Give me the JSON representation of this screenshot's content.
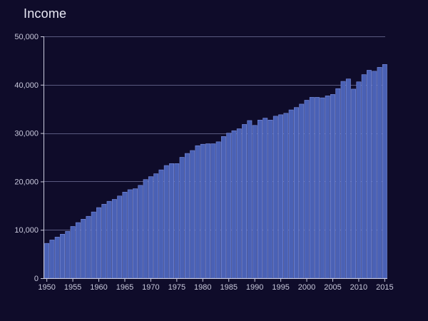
{
  "chart_data": {
    "type": "bar",
    "title": "Income",
    "xlabel": "",
    "ylabel": "",
    "x_tick_labels": [
      "1950",
      "1955",
      "1960",
      "1965",
      "1970",
      "1975",
      "1980",
      "1985",
      "1990",
      "1995",
      "2000",
      "2005",
      "2010",
      "2015"
    ],
    "y_tick_labels": [
      "0",
      "10,000",
      "20,000",
      "30,000",
      "40,000",
      "50,000"
    ],
    "y_ticks": [
      0,
      10000,
      20000,
      30000,
      40000,
      50000
    ],
    "ylim": [
      0,
      50000
    ],
    "grid": true,
    "bar_color": "#4a61b5",
    "bar_edge_color": "#7b8fe0",
    "grid_color": "#5a5a80",
    "background_color": "#0f0c2a",
    "categories": [
      1950,
      1951,
      1952,
      1953,
      1954,
      1955,
      1956,
      1957,
      1958,
      1959,
      1960,
      1961,
      1962,
      1963,
      1964,
      1965,
      1966,
      1967,
      1968,
      1969,
      1970,
      1971,
      1972,
      1973,
      1974,
      1975,
      1976,
      1977,
      1978,
      1979,
      1980,
      1981,
      1982,
      1983,
      1984,
      1985,
      1986,
      1987,
      1988,
      1989,
      1990,
      1991,
      1992,
      1993,
      1994,
      1995,
      1996,
      1997,
      1998,
      1999,
      2000,
      2001,
      2002,
      2003,
      2004,
      2005,
      2006,
      2007,
      2008,
      2009,
      2010,
      2011,
      2012,
      2013,
      2014,
      2015
    ],
    "values": [
      7200,
      7900,
      8500,
      9100,
      9700,
      10700,
      11500,
      12200,
      12800,
      13700,
      14600,
      15300,
      15900,
      16300,
      17000,
      17800,
      18300,
      18500,
      19200,
      20400,
      21000,
      21600,
      22400,
      23300,
      23700,
      23700,
      25000,
      25800,
      26400,
      27400,
      27700,
      27800,
      27800,
      28200,
      29300,
      30000,
      30500,
      30900,
      31800,
      32600,
      31600,
      32700,
      33100,
      32700,
      33500,
      33800,
      34100,
      34800,
      35300,
      36000,
      36800,
      37400,
      37400,
      37300,
      37700,
      38000,
      39200,
      40700,
      41200,
      39100,
      40600,
      42100,
      43000,
      42800,
      43600,
      44200
    ]
  }
}
